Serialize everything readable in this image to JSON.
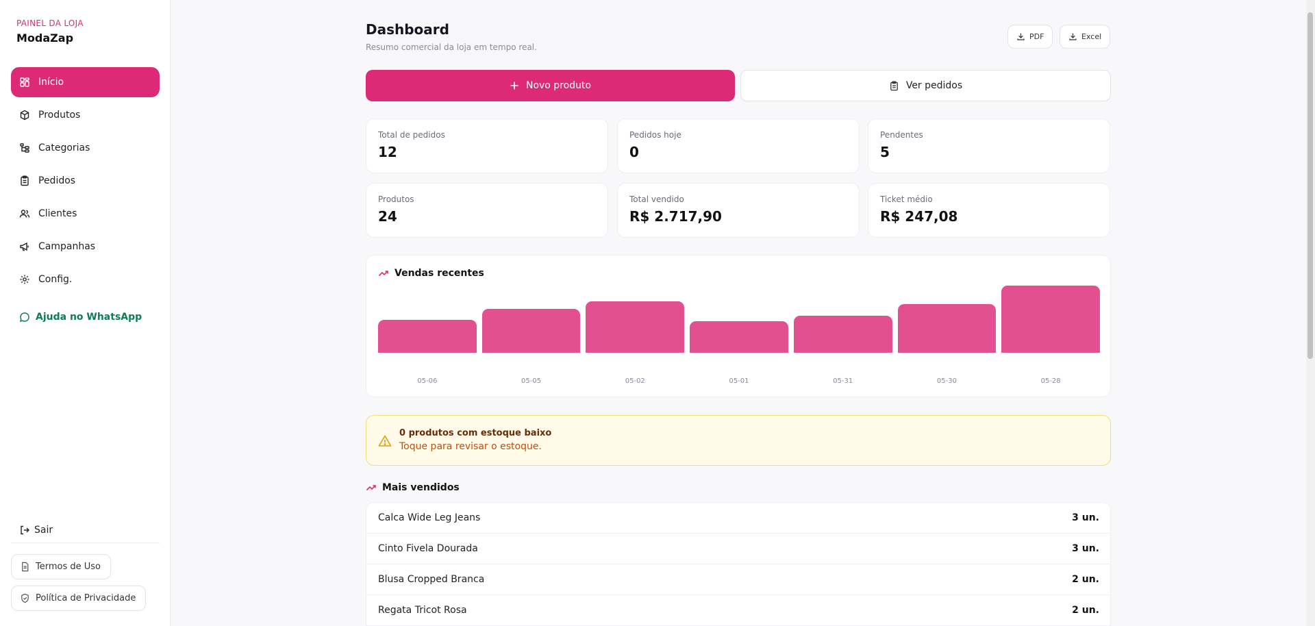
{
  "sidebar": {
    "kicker": "PAINEL DA LOJA",
    "brand": "ModaZap",
    "items": [
      {
        "label": "Início",
        "icon": "grid-icon",
        "active": true
      },
      {
        "label": "Produtos",
        "icon": "box-icon"
      },
      {
        "label": "Categorias",
        "icon": "tree-icon"
      },
      {
        "label": "Pedidos",
        "icon": "clipboard-icon"
      },
      {
        "label": "Clientes",
        "icon": "users-icon"
      },
      {
        "label": "Campanhas",
        "icon": "megaphone-icon"
      },
      {
        "label": "Config.",
        "icon": "gear-icon"
      }
    ],
    "help_label": "Ajuda no WhatsApp",
    "logout_label": "Sair",
    "terms_label": "Termos de Uso",
    "privacy_label": "Política de Privacidade"
  },
  "header": {
    "title": "Dashboard",
    "subtitle": "Resumo comercial da loja em tempo real.",
    "pdf_label": "PDF",
    "excel_label": "Excel"
  },
  "actions": {
    "new_product_label": "Novo produto",
    "view_orders_label": "Ver pedidos"
  },
  "stats": [
    {
      "label": "Total de pedidos",
      "value": "12"
    },
    {
      "label": "Pedidos hoje",
      "value": "0"
    },
    {
      "label": "Pendentes",
      "value": "5"
    },
    {
      "label": "Produtos",
      "value": "24"
    },
    {
      "label": "Total vendido",
      "value": "R$ 2.717,90"
    },
    {
      "label": "Ticket médio",
      "value": "R$ 247,08"
    }
  ],
  "recent_sales": {
    "title": "Vendas recentes"
  },
  "chart_data": {
    "type": "bar",
    "title": "Vendas recentes",
    "categories": [
      "05-06",
      "05-05",
      "05-02",
      "05-01",
      "05-31",
      "05-30",
      "05-28"
    ],
    "values": [
      49,
      65,
      77,
      47,
      55,
      72,
      100
    ],
    "ylim": [
      0,
      100
    ],
    "grid": false,
    "color": "#e2508f"
  },
  "alert": {
    "title": "0 produtos com estoque baixo",
    "subtitle": "Toque para revisar o estoque."
  },
  "best_sellers": {
    "title": "Mais vendidos",
    "items": [
      {
        "name": "Calca Wide Leg Jeans",
        "qty": "3 un."
      },
      {
        "name": "Cinto Fivela Dourada",
        "qty": "3 un."
      },
      {
        "name": "Blusa Cropped Branca",
        "qty": "2 un."
      },
      {
        "name": "Regata Tricot Rosa",
        "qty": "2 un."
      }
    ]
  },
  "colors": {
    "accent": "#dc2a76",
    "bar": "#e2508f",
    "whatsapp": "#0f7a5c",
    "alert_bg": "#fffbe8"
  }
}
